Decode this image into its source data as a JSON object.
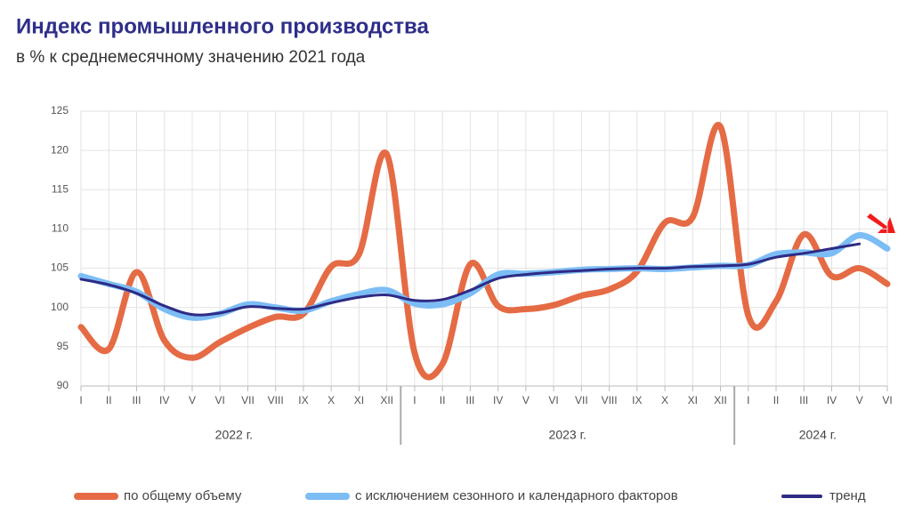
{
  "chart_data": {
    "type": "line",
    "title": "Индекс промышленного производства",
    "subtitle": "в % к среднемесячному значению 2021 года",
    "categories": [
      "I",
      "II",
      "III",
      "IV",
      "V",
      "VI",
      "VII",
      "VIII",
      "IX",
      "X",
      "XI",
      "XII",
      "I",
      "II",
      "III",
      "IV",
      "V",
      "VI",
      "VII",
      "VIII",
      "IX",
      "X",
      "XI",
      "XII",
      "I",
      "II",
      "III",
      "IV",
      "V",
      "VI"
    ],
    "groups": [
      {
        "label": "2022 г.",
        "size": 12
      },
      {
        "label": "2023 г.",
        "size": 12
      },
      {
        "label": "2024 г.",
        "size": 6
      }
    ],
    "series": [
      {
        "name": "по общему объему",
        "color": "#e56b45",
        "width": 7,
        "values": [
          97.5,
          94.7,
          104.5,
          95.8,
          93.6,
          95.6,
          97.4,
          98.8,
          99.2,
          105.2,
          106.8,
          119.5,
          94.2,
          92.8,
          105.5,
          100.2,
          99.8,
          100.3,
          101.5,
          102.3,
          104.6,
          110.8,
          111.5,
          123.0,
          99.0,
          100.8,
          109.3,
          104.0,
          105.0,
          103.0
        ]
      },
      {
        "name": "с исключением сезонного и календарного факторов",
        "color": "#7cbdf5",
        "width": 7,
        "values": [
          104.0,
          103.0,
          102.0,
          99.8,
          98.7,
          99.2,
          100.4,
          100.0,
          99.6,
          100.8,
          101.7,
          102.2,
          100.5,
          100.4,
          101.8,
          104.2,
          104.3,
          104.5,
          104.8,
          104.9,
          105.0,
          104.9,
          105.1,
          105.3,
          105.4,
          106.8,
          107.0,
          106.9,
          109.2,
          107.5
        ]
      },
      {
        "name": "тренд",
        "color": "#2e2b85",
        "width": 3,
        "values": [
          103.6,
          102.9,
          101.8,
          100.2,
          99.1,
          99.3,
          100.1,
          99.9,
          99.8,
          100.6,
          101.3,
          101.6,
          100.9,
          101.0,
          102.2,
          103.7,
          104.2,
          104.5,
          104.7,
          104.9,
          105.0,
          105.0,
          105.2,
          105.3,
          105.5,
          106.4,
          106.9,
          107.5,
          108.1,
          null
        ]
      }
    ],
    "ylim": [
      90,
      125
    ],
    "yticks": [
      90,
      95,
      100,
      105,
      110,
      115,
      120,
      125
    ],
    "grid": true
  }
}
